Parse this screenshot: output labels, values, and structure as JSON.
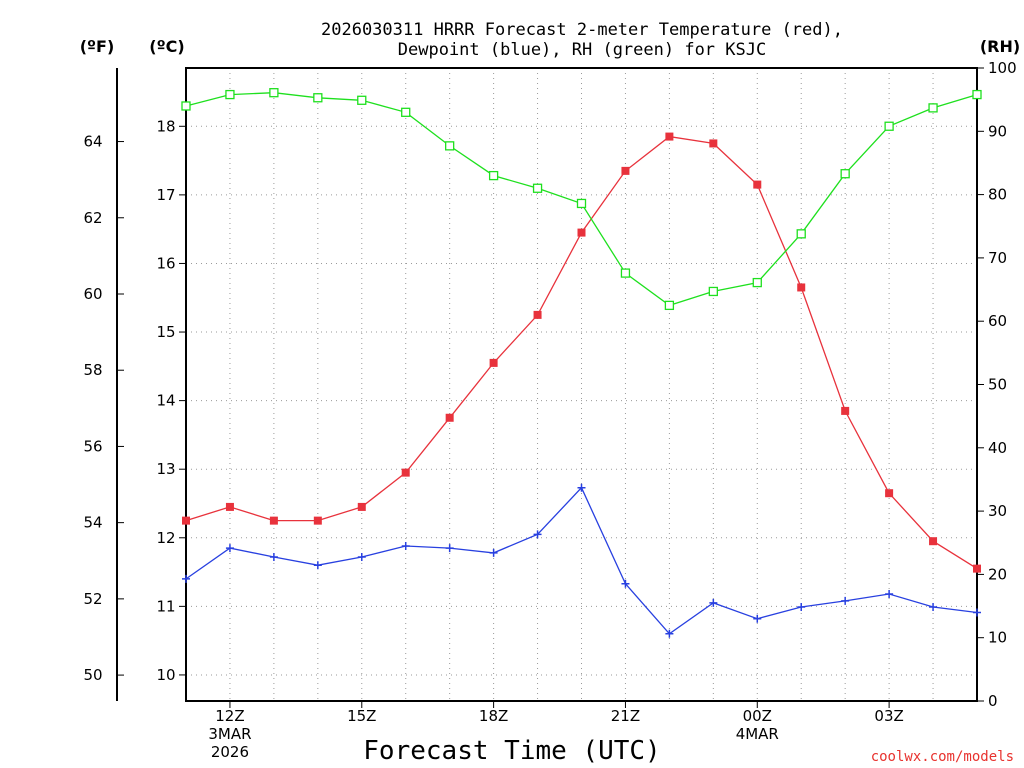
{
  "chart_data": {
    "type": "line",
    "title_line1": "2026030311 HRRR Forecast 2-meter Temperature (red),",
    "title_line2": "Dewpoint (blue), RH (green) for KSJC",
    "xlabel": "Forecast Time (UTC)",
    "credit": "coolwx.com/models",
    "units": {
      "fahrenheit": "(ºF)",
      "celsius": "(ºC)",
      "rh": "(RH)"
    },
    "x_hours": [
      11,
      12,
      13,
      14,
      15,
      16,
      17,
      18,
      19,
      20,
      21,
      22,
      23,
      24,
      25,
      26,
      27,
      28,
      29
    ],
    "x_range": [
      11,
      29
    ],
    "x_ticks": [
      {
        "hour": 12,
        "lines": [
          "12Z",
          "3MAR",
          "2026"
        ]
      },
      {
        "hour": 15,
        "lines": [
          "15Z"
        ]
      },
      {
        "hour": 18,
        "lines": [
          "18Z"
        ]
      },
      {
        "hour": 21,
        "lines": [
          "21Z"
        ]
      },
      {
        "hour": 24,
        "lines": [
          "00Z",
          "4MAR"
        ]
      },
      {
        "hour": 27,
        "lines": [
          "03Z"
        ]
      }
    ],
    "celsius_range": [
      9.62,
      18.85
    ],
    "celsius_ticks": [
      "10",
      "11",
      "12",
      "13",
      "14",
      "15",
      "16",
      "17",
      "18"
    ],
    "fahrenheit_range": [
      49.32,
      65.93
    ],
    "fahrenheit_ticks": [
      "50",
      "52",
      "54",
      "56",
      "58",
      "60",
      "62",
      "64"
    ],
    "rh_range": [
      0,
      100
    ],
    "rh_ticks": [
      "0",
      "10",
      "20",
      "30",
      "40",
      "50",
      "60",
      "70",
      "80",
      "90",
      "100"
    ],
    "series": [
      {
        "name": "Temperature",
        "unit": "C",
        "color": "#e8323c",
        "marker": "filled-square",
        "values": [
          12.25,
          12.45,
          12.25,
          12.25,
          12.45,
          12.95,
          13.75,
          14.55,
          15.25,
          16.45,
          17.35,
          17.85,
          17.75,
          17.15,
          15.65,
          13.85,
          12.65,
          11.95,
          11.55
        ]
      },
      {
        "name": "Dewpoint",
        "unit": "C",
        "color": "#2840e0",
        "marker": "plus",
        "values": [
          11.4,
          11.85,
          11.72,
          11.6,
          11.72,
          11.88,
          11.85,
          11.78,
          12.05,
          12.73,
          11.33,
          10.6,
          11.05,
          10.82,
          10.99,
          11.08,
          11.18,
          10.99,
          10.91
        ]
      },
      {
        "name": "RH",
        "unit": "%",
        "color": "#1ee01e",
        "marker": "open-square",
        "values": [
          94,
          95.8,
          96.1,
          95.3,
          94.9,
          93,
          87.7,
          83,
          81,
          78.6,
          67.6,
          62.5,
          64.7,
          66.1,
          73.8,
          83.3,
          90.8,
          93.7,
          95.8
        ]
      }
    ]
  }
}
